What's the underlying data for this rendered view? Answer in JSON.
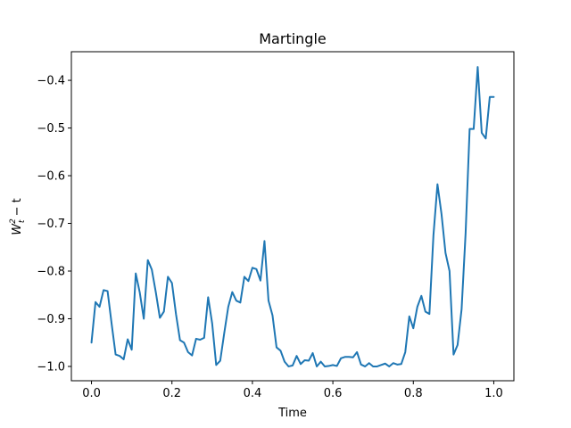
{
  "chart_data": {
    "type": "line",
    "title": "Martingle",
    "xlabel": "Time",
    "ylabel_parts": {
      "var": "W",
      "sup": "2",
      "sub": "t",
      "rest": " − t"
    },
    "xlim": [
      -0.05,
      1.05
    ],
    "ylim": [
      -1.03,
      -0.34
    ],
    "xticks": [
      0.0,
      0.2,
      0.4,
      0.6,
      0.8,
      1.0
    ],
    "xtick_labels": [
      "0.0",
      "0.2",
      "0.4",
      "0.6",
      "0.8",
      "1.0"
    ],
    "yticks": [
      -1.0,
      -0.9,
      -0.8,
      -0.7,
      -0.6,
      -0.5,
      -0.4
    ],
    "ytick_labels": [
      "−1.0",
      "−0.9",
      "−0.8",
      "−0.7",
      "−0.6",
      "−0.5",
      "−0.4"
    ],
    "grid": false,
    "color": "#1f77b4",
    "series": [
      {
        "x": [
          0.0,
          0.01,
          0.02,
          0.03,
          0.04,
          0.05,
          0.06,
          0.07,
          0.08,
          0.09,
          0.1,
          0.11,
          0.12,
          0.13,
          0.14,
          0.15,
          0.16,
          0.17,
          0.18,
          0.19,
          0.2,
          0.21,
          0.22,
          0.23,
          0.24,
          0.25,
          0.26,
          0.27,
          0.28,
          0.29,
          0.3,
          0.31,
          0.32,
          0.33,
          0.34,
          0.35,
          0.36,
          0.37,
          0.38,
          0.39,
          0.4,
          0.41,
          0.42,
          0.43,
          0.44,
          0.45,
          0.46,
          0.47,
          0.48,
          0.49,
          0.5,
          0.51,
          0.52,
          0.53,
          0.54,
          0.55,
          0.56,
          0.57,
          0.58,
          0.59,
          0.6,
          0.61,
          0.62,
          0.63,
          0.64,
          0.65,
          0.66,
          0.67,
          0.68,
          0.69,
          0.7,
          0.71,
          0.72,
          0.73,
          0.74,
          0.75,
          0.76,
          0.77,
          0.78,
          0.79,
          0.8,
          0.81,
          0.82,
          0.83,
          0.84,
          0.85,
          0.86,
          0.87,
          0.88,
          0.89,
          0.9,
          0.91,
          0.92,
          0.93,
          0.94,
          0.95,
          0.96,
          0.97,
          0.98,
          0.99,
          1.0
        ],
        "y": [
          -0.95,
          -0.865,
          -0.875,
          -0.84,
          -0.842,
          -0.91,
          -0.975,
          -0.978,
          -0.985,
          -0.943,
          -0.965,
          -0.805,
          -0.845,
          -0.9,
          -0.777,
          -0.797,
          -0.845,
          -0.898,
          -0.885,
          -0.812,
          -0.825,
          -0.89,
          -0.945,
          -0.95,
          -0.97,
          -0.977,
          -0.942,
          -0.944,
          -0.94,
          -0.855,
          -0.91,
          -0.997,
          -0.988,
          -0.93,
          -0.875,
          -0.844,
          -0.862,
          -0.866,
          -0.812,
          -0.821,
          -0.793,
          -0.796,
          -0.82,
          -0.737,
          -0.862,
          -0.893,
          -0.96,
          -0.967,
          -0.99,
          -1.0,
          -0.998,
          -0.978,
          -0.995,
          -0.987,
          -0.988,
          -0.972,
          -1.0,
          -0.99,
          -1.0,
          -0.999,
          -0.997,
          -0.999,
          -0.983,
          -0.98,
          -0.98,
          -0.981,
          -0.97,
          -0.996,
          -1.0,
          -0.993,
          -1.0,
          -1.0,
          -0.997,
          -0.994,
          -1.0,
          -0.993,
          -0.996,
          -0.995,
          -0.97,
          -0.895,
          -0.92,
          -0.875,
          -0.852,
          -0.885,
          -0.89,
          -0.725,
          -0.618,
          -0.68,
          -0.762,
          -0.8,
          -0.975,
          -0.955,
          -0.88,
          -0.72,
          -0.502,
          -0.502,
          -0.372,
          -0.51,
          -0.522,
          -0.435,
          -0.435
        ]
      }
    ]
  }
}
